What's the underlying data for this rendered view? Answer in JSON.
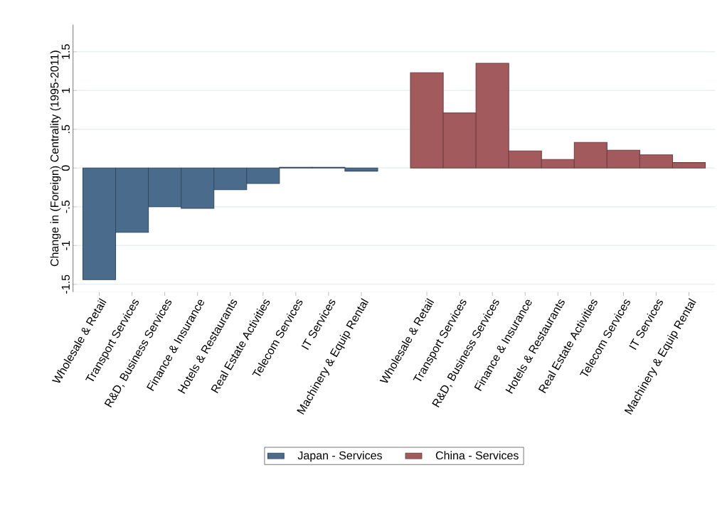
{
  "chart_data": {
    "type": "bar",
    "ylabel": "Change in (Foreign) Centrality (1995-2011)",
    "categories": [
      "Wholesale & Retail",
      "Transport Services",
      "R&D, Business Services",
      "Finance & Insurance",
      "Hotels & Restaurants",
      "Real Estate Activities",
      "Telecom Services",
      "IT Services",
      "Machinery & Equip Rental",
      null,
      "Wholesale & Retail",
      "Transport Services",
      "R&D, Business Services",
      "Finance & Insurance",
      "Hotels & Restaurants",
      "Real Estate Activities",
      "Telecom Services",
      "IT Services",
      "Machinery & Equip Rental"
    ],
    "series": [
      {
        "name": "Japan - Services",
        "color": "#4a6b8c",
        "values": [
          -1.44,
          -0.83,
          -0.5,
          -0.52,
          -0.28,
          -0.2,
          0.01,
          0.01,
          -0.04,
          null,
          null,
          null,
          null,
          null,
          null,
          null,
          null,
          null,
          null
        ]
      },
      {
        "name": "China - Services",
        "color": "#a35a5d",
        "values": [
          null,
          null,
          null,
          null,
          null,
          null,
          null,
          null,
          null,
          null,
          1.23,
          0.71,
          1.35,
          0.22,
          0.11,
          0.33,
          0.23,
          0.17,
          0.07
        ]
      }
    ],
    "ylim": [
      -1.6,
      1.85
    ],
    "yticks": [
      {
        "value": -1.5,
        "label": "-1.5"
      },
      {
        "value": -1,
        "label": "-1"
      },
      {
        "value": -0.5,
        "label": "-.5"
      },
      {
        "value": 0,
        "label": "0"
      },
      {
        "value": 0.5,
        "label": ".5"
      },
      {
        "value": 1,
        "label": "1"
      },
      {
        "value": 1.5,
        "label": "1.5"
      }
    ],
    "grid": "y",
    "legend": "bottom"
  }
}
